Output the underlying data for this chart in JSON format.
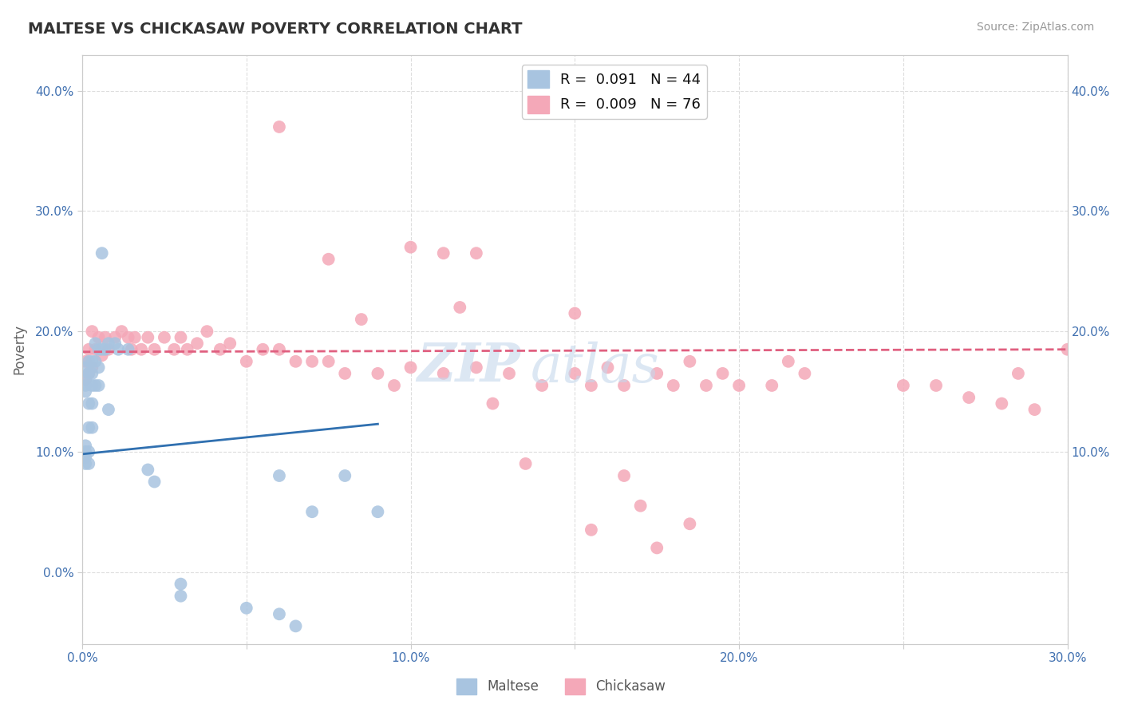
{
  "title": "MALTESE VS CHICKASAW POVERTY CORRELATION CHART",
  "source": "Source: ZipAtlas.com",
  "ylabel": "Poverty",
  "xlim": [
    0.0,
    0.3
  ],
  "ylim": [
    -0.06,
    0.43
  ],
  "xticks": [
    0.0,
    0.05,
    0.1,
    0.15,
    0.2,
    0.25,
    0.3
  ],
  "yticks": [
    0.0,
    0.1,
    0.2,
    0.3,
    0.4
  ],
  "ytick_labels_left": [
    "0.0%",
    "10.0%",
    "20.0%",
    "30.0%",
    "40.0%"
  ],
  "ytick_labels_right": [
    "",
    "10.0%",
    "20.0%",
    "30.0%",
    "40.0%"
  ],
  "xtick_labels": [
    "0.0%",
    "",
    "10.0%",
    "",
    "20.0%",
    "",
    "30.0%"
  ],
  "maltese_R": 0.091,
  "maltese_N": 44,
  "chickasaw_R": 0.009,
  "chickasaw_N": 76,
  "maltese_color": "#a8c4e0",
  "chickasaw_color": "#f4a8b8",
  "maltese_line_color": "#3070b0",
  "chickasaw_line_color": "#e06080",
  "background_color": "#ffffff",
  "grid_color": "#dddddd",
  "maltese_x": [
    0.001,
    0.001,
    0.001,
    0.001,
    0.001,
    0.001,
    0.001,
    0.001,
    0.002,
    0.002,
    0.002,
    0.002,
    0.002,
    0.002,
    0.003,
    0.003,
    0.003,
    0.003,
    0.003,
    0.004,
    0.004,
    0.004,
    0.005,
    0.005,
    0.005,
    0.006,
    0.006,
    0.007,
    0.008,
    0.008,
    0.01,
    0.011,
    0.014,
    0.02,
    0.022,
    0.03,
    0.03,
    0.05,
    0.06,
    0.06,
    0.065,
    0.07,
    0.08,
    0.09
  ],
  "maltese_y": [
    0.17,
    0.16,
    0.155,
    0.15,
    0.105,
    0.1,
    0.095,
    0.09,
    0.175,
    0.165,
    0.14,
    0.12,
    0.1,
    0.09,
    0.175,
    0.165,
    0.155,
    0.14,
    0.12,
    0.19,
    0.175,
    0.155,
    0.185,
    0.17,
    0.155,
    0.265,
    0.185,
    0.185,
    0.19,
    0.135,
    0.19,
    0.185,
    0.185,
    0.085,
    0.075,
    -0.01,
    -0.02,
    -0.03,
    0.08,
    -0.035,
    -0.045,
    0.05,
    0.08,
    0.05
  ],
  "chickasaw_x": [
    0.001,
    0.001,
    0.002,
    0.002,
    0.003,
    0.003,
    0.004,
    0.005,
    0.006,
    0.007,
    0.008,
    0.01,
    0.012,
    0.014,
    0.015,
    0.016,
    0.018,
    0.02,
    0.022,
    0.025,
    0.028,
    0.03,
    0.032,
    0.035,
    0.038,
    0.042,
    0.045,
    0.05,
    0.055,
    0.06,
    0.065,
    0.07,
    0.075,
    0.08,
    0.09,
    0.095,
    0.1,
    0.11,
    0.12,
    0.13,
    0.14,
    0.15,
    0.155,
    0.16,
    0.165,
    0.175,
    0.18,
    0.185,
    0.19,
    0.195,
    0.2,
    0.21,
    0.215,
    0.22,
    0.25,
    0.26,
    0.27,
    0.28,
    0.285,
    0.29,
    0.3,
    0.15,
    0.11,
    0.12,
    0.06,
    0.075,
    0.085,
    0.1,
    0.115,
    0.125,
    0.135,
    0.155,
    0.165,
    0.17,
    0.175,
    0.185
  ],
  "chickasaw_y": [
    0.175,
    0.16,
    0.185,
    0.165,
    0.2,
    0.17,
    0.185,
    0.195,
    0.18,
    0.195,
    0.185,
    0.195,
    0.2,
    0.195,
    0.185,
    0.195,
    0.185,
    0.195,
    0.185,
    0.195,
    0.185,
    0.195,
    0.185,
    0.19,
    0.2,
    0.185,
    0.19,
    0.175,
    0.185,
    0.185,
    0.175,
    0.175,
    0.175,
    0.165,
    0.165,
    0.155,
    0.17,
    0.165,
    0.17,
    0.165,
    0.155,
    0.165,
    0.155,
    0.17,
    0.155,
    0.165,
    0.155,
    0.175,
    0.155,
    0.165,
    0.155,
    0.155,
    0.175,
    0.165,
    0.155,
    0.155,
    0.145,
    0.14,
    0.165,
    0.135,
    0.185,
    0.215,
    0.265,
    0.265,
    0.37,
    0.26,
    0.21,
    0.27,
    0.22,
    0.14,
    0.09,
    0.035,
    0.08,
    0.055,
    0.02,
    0.04
  ]
}
